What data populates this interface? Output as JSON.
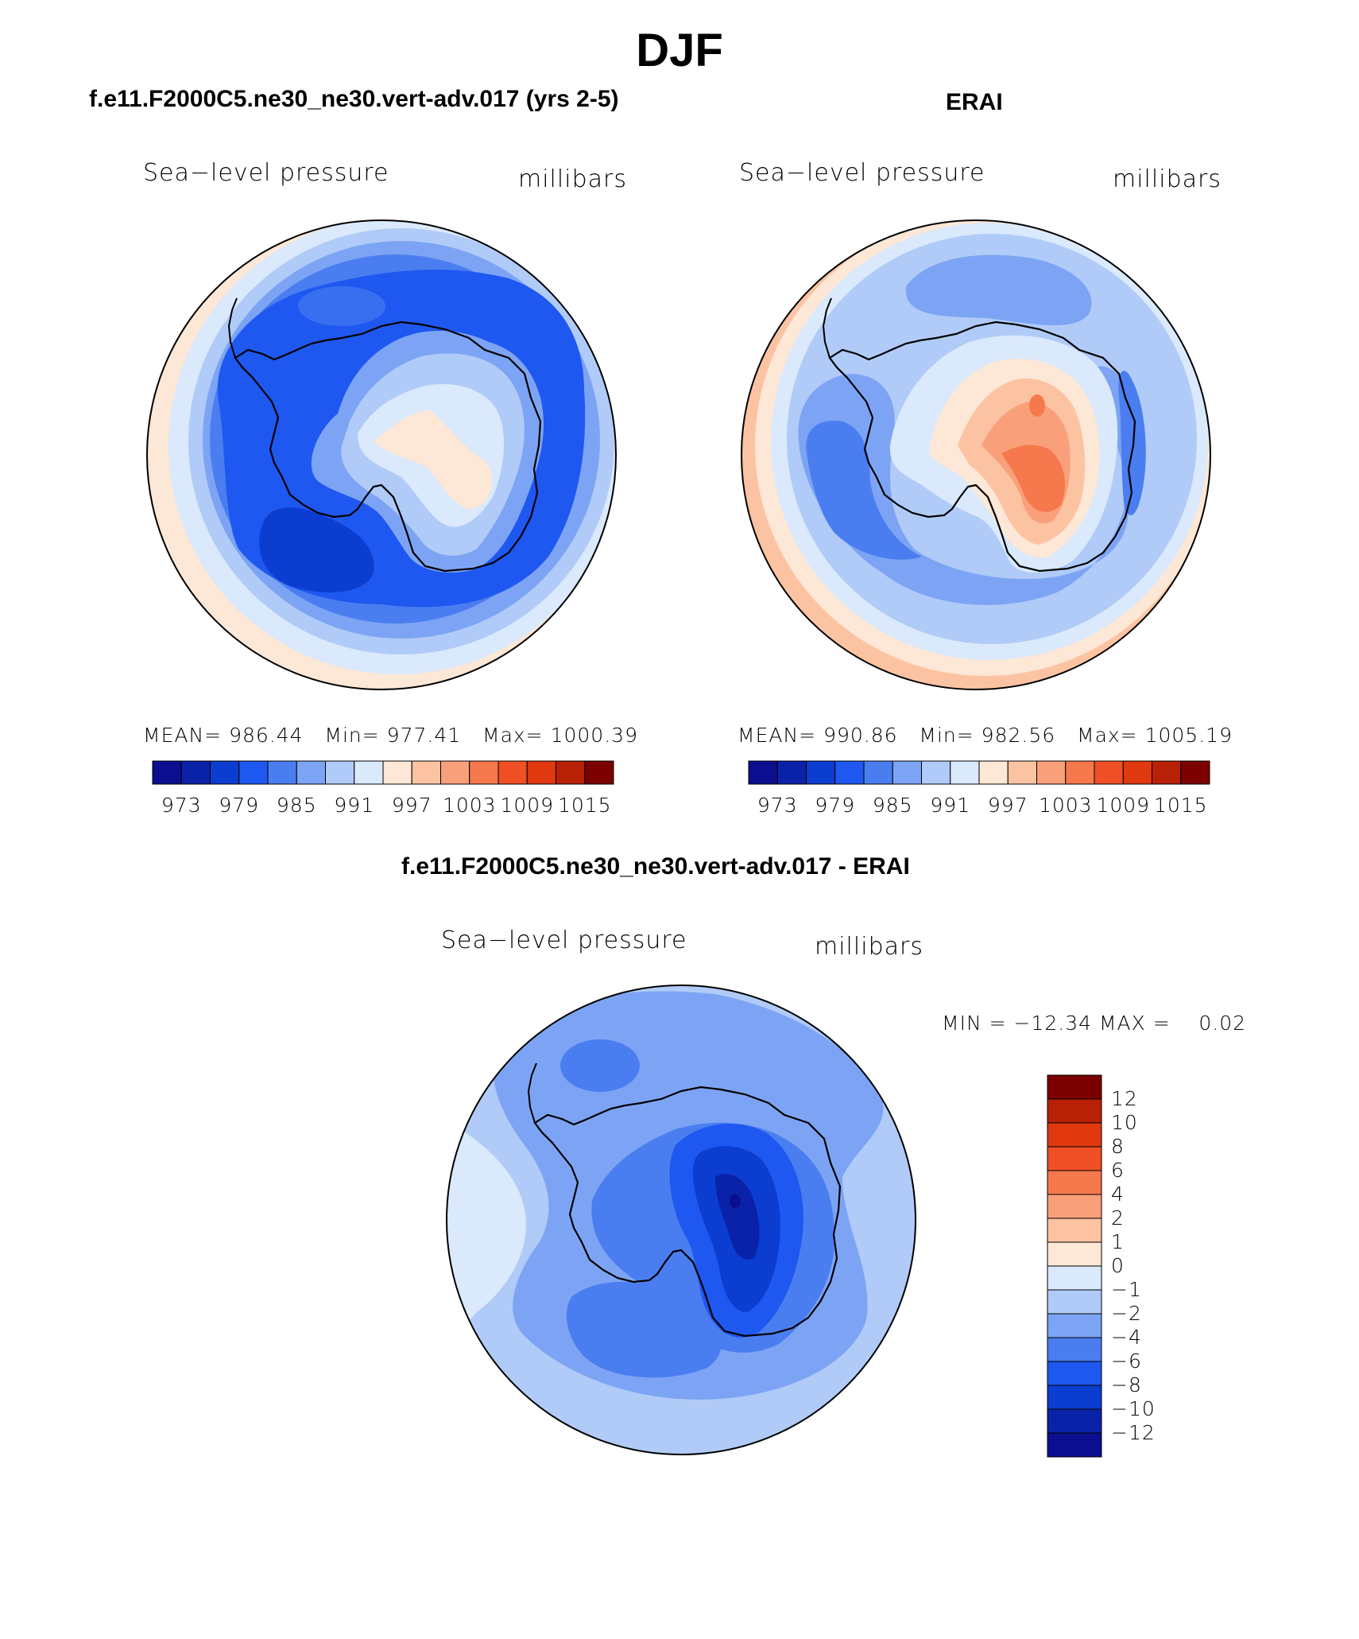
{
  "figure": {
    "title": "DJF"
  },
  "panels": [
    {
      "title": "f.e11.F2000C5.ne30_ne30.vert-adv.017 (yrs 2-5)",
      "variable": "Sea−level pressure",
      "units": "millibars",
      "stats": {
        "mean_label": "MEAN=",
        "mean": "986.44",
        "min_label": "Min=",
        "min": "977.41",
        "max_label": "Max=",
        "max": "1000.39"
      }
    },
    {
      "title": "ERAI",
      "variable": "Sea−level pressure",
      "units": "millibars",
      "stats": {
        "mean_label": "MEAN=",
        "mean": "990.86",
        "min_label": "Min=",
        "min": "982.56",
        "max_label": "Max=",
        "max": "1005.19"
      }
    },
    {
      "title": "f.e11.F2000C5.ne30_ne30.vert-adv.017 - ERAI",
      "variable": "Sea−level pressure",
      "units": "millibars",
      "stats_text": "MIN = −12.34 MAX =    0.02"
    }
  ],
  "colorbar_abs": {
    "ticks": [
      "973",
      "979",
      "985",
      "991",
      "997",
      "1003",
      "1009",
      "1015"
    ],
    "colors": [
      "#0b0f8f",
      "#0a22a8",
      "#0b3dd0",
      "#1e58f0",
      "#4a7ef0",
      "#7da4f4",
      "#b0cbf8",
      "#dae9fb",
      "#fde7d6",
      "#fcc3a3",
      "#f9a07a",
      "#f6784d",
      "#f05025",
      "#e0380f",
      "#b82105",
      "#7d0000"
    ]
  },
  "colorbar_diff": {
    "ticks": [
      "12",
      "10",
      "8",
      "6",
      "4",
      "2",
      "1",
      "0",
      "−1",
      "−2",
      "−4",
      "−6",
      "−8",
      "−10",
      "−12"
    ],
    "colors": [
      "#7d0000",
      "#b82105",
      "#e0380f",
      "#f05025",
      "#f6784d",
      "#f9a07a",
      "#fcc3a3",
      "#fde7d6",
      "#dae9fb",
      "#b0cbf8",
      "#7da4f4",
      "#4a7ef0",
      "#1e58f0",
      "#0b3dd0",
      "#0a22a8",
      "#0b0f8f"
    ]
  },
  "map_colors": {
    "outline": "#000000",
    "continent_line": "#000000"
  }
}
